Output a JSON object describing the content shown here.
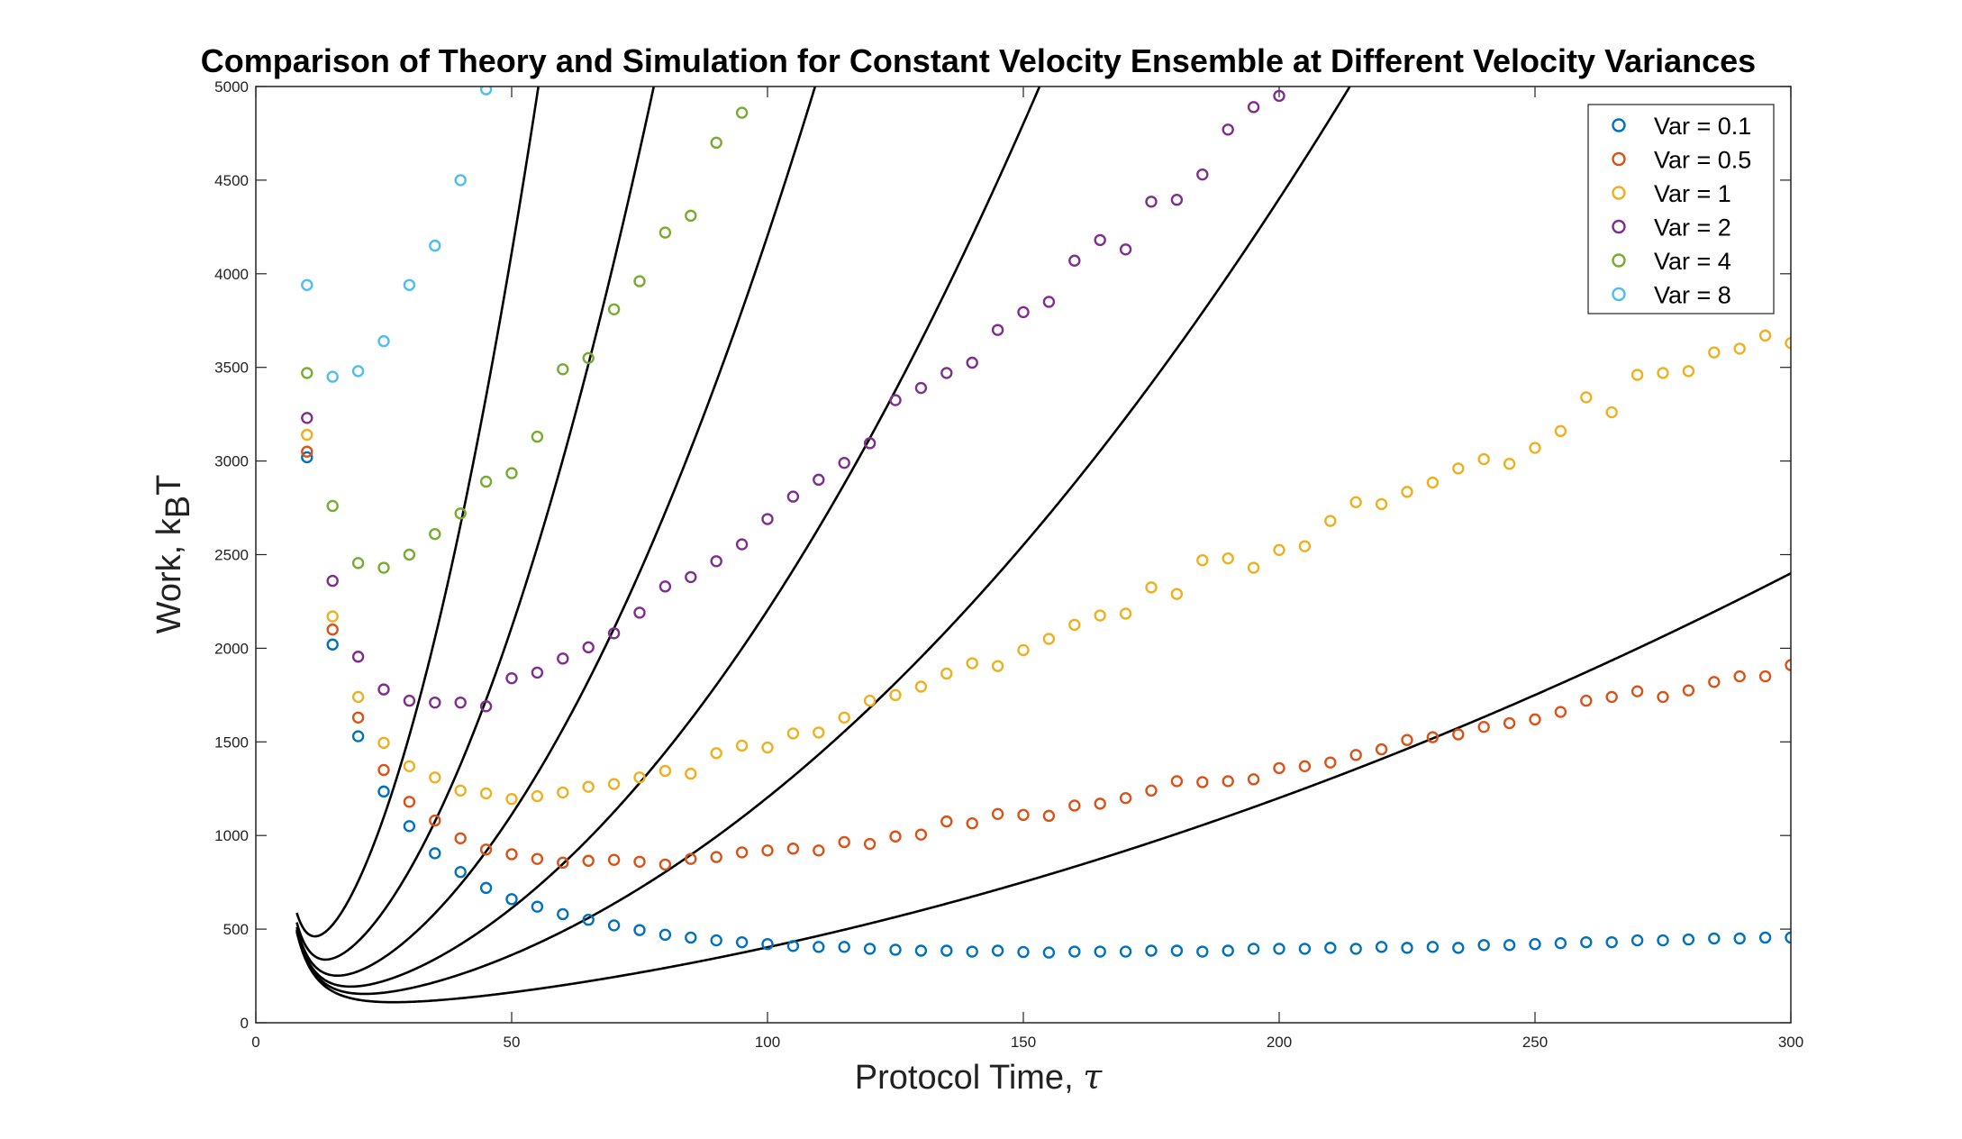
{
  "chart_data": {
    "type": "scatter",
    "title": "Comparison of Theory and Simulation for Constant Velocity Ensemble at Different Velocity Variances",
    "xlabel": "Protocol Time, ",
    "xlabel_symbol": "τ",
    "ylabel": "Work, k",
    "ylabel_sub": "B",
    "ylabel_tail": "T",
    "xlim": [
      0,
      300
    ],
    "ylim": [
      0,
      5000
    ],
    "xticks": [
      0,
      50,
      100,
      150,
      200,
      250,
      300
    ],
    "yticks": [
      0,
      500,
      1000,
      1500,
      2000,
      2500,
      3000,
      3500,
      4000,
      4500,
      5000
    ],
    "grid": false,
    "legend_position": "top-right",
    "series": [
      {
        "name": "Var = 0.1",
        "color": "#0072BD",
        "theory": {
          "a": 30000,
          "b": 0.02,
          "c": 0.0088,
          "d": 2.0
        },
        "x": [
          10,
          15,
          20,
          25,
          30,
          35,
          40,
          45,
          50,
          55,
          60,
          65,
          70,
          75,
          80,
          85,
          90,
          95,
          100,
          105,
          110,
          115,
          120,
          125,
          130,
          135,
          140,
          145,
          150,
          155,
          160,
          165,
          170,
          175,
          180,
          185,
          190,
          195,
          200,
          205,
          210,
          215,
          220,
          225,
          230,
          235,
          240,
          245,
          250,
          255,
          260,
          265,
          270,
          275,
          280,
          285,
          290,
          295,
          300
        ],
        "values": [
          3020,
          2020,
          1530,
          1235,
          1050,
          905,
          805,
          720,
          660,
          620,
          580,
          550,
          520,
          495,
          470,
          455,
          440,
          430,
          420,
          410,
          405,
          405,
          395,
          390,
          385,
          385,
          380,
          385,
          378,
          375,
          380,
          380,
          380,
          385,
          385,
          380,
          385,
          395,
          395,
          395,
          400,
          395,
          405,
          400,
          405,
          400,
          415,
          415,
          420,
          425,
          430,
          430,
          440,
          440,
          445,
          450,
          450,
          455,
          455
        ]
      },
      {
        "name": "Var = 0.5",
        "color": "#D95319",
        "theory": {
          "a": 30000,
          "b": 0.1,
          "c": 0.0088,
          "d": 2.0
        },
        "x": [
          10,
          15,
          20,
          25,
          30,
          35,
          40,
          45,
          50,
          55,
          60,
          65,
          70,
          75,
          80,
          85,
          90,
          95,
          100,
          105,
          110,
          115,
          120,
          125,
          130,
          135,
          140,
          145,
          150,
          155,
          160,
          165,
          170,
          175,
          180,
          185,
          190,
          195,
          200,
          205,
          210,
          215,
          220,
          225,
          230,
          235,
          240,
          245,
          250,
          255,
          260,
          265,
          270,
          275,
          280,
          285,
          290,
          295,
          300
        ],
        "values": [
          3050,
          2100,
          1630,
          1350,
          1180,
          1080,
          985,
          925,
          900,
          875,
          855,
          865,
          870,
          860,
          845,
          875,
          885,
          910,
          920,
          930,
          920,
          965,
          955,
          995,
          1005,
          1075,
          1065,
          1115,
          1110,
          1105,
          1160,
          1170,
          1200,
          1240,
          1290,
          1285,
          1290,
          1300,
          1360,
          1370,
          1390,
          1430,
          1460,
          1510,
          1525,
          1540,
          1580,
          1600,
          1620,
          1660,
          1720,
          1740,
          1770,
          1740,
          1775,
          1820,
          1850,
          1850,
          1910
        ]
      },
      {
        "name": "Var = 1",
        "color": "#EDB120",
        "theory": {
          "a": 30000,
          "b": 0.2,
          "c": 0.0088,
          "d": 2.0
        },
        "x": [
          10,
          15,
          20,
          25,
          30,
          35,
          40,
          45,
          50,
          55,
          60,
          65,
          70,
          75,
          80,
          85,
          90,
          95,
          100,
          105,
          110,
          115,
          120,
          125,
          130,
          135,
          140,
          145,
          150,
          155,
          160,
          165,
          170,
          175,
          180,
          185,
          190,
          195,
          200,
          205,
          210,
          215,
          220,
          225,
          230,
          235,
          240,
          245,
          250,
          255,
          260,
          265,
          270,
          275,
          280,
          285,
          290,
          295,
          300
        ],
        "values": [
          3140,
          2170,
          1740,
          1495,
          1370,
          1310,
          1240,
          1225,
          1195,
          1210,
          1230,
          1260,
          1275,
          1310,
          1345,
          1330,
          1440,
          1480,
          1470,
          1545,
          1550,
          1630,
          1720,
          1750,
          1795,
          1865,
          1920,
          1905,
          1990,
          2050,
          2125,
          2175,
          2185,
          2325,
          2290,
          2470,
          2480,
          2430,
          2525,
          2545,
          2680,
          2780,
          2770,
          2835,
          2885,
          2960,
          3010,
          2985,
          3070,
          3160,
          3340,
          3260,
          3460,
          3470,
          3480,
          3580,
          3600,
          3670,
          3630
        ]
      },
      {
        "name": "Var = 2",
        "color": "#7E2F8E",
        "theory": {
          "a": 30000,
          "b": 0.4,
          "c": 0.0088,
          "d": 2.0
        },
        "x": [
          10,
          15,
          20,
          25,
          30,
          35,
          40,
          45,
          50,
          55,
          60,
          65,
          70,
          75,
          80,
          85,
          90,
          95,
          100,
          105,
          110,
          115,
          120,
          125,
          130,
          135,
          140,
          145,
          150,
          155,
          160,
          165,
          170,
          175,
          180,
          185,
          190,
          195,
          200
        ],
        "values": [
          3230,
          2360,
          1955,
          1780,
          1720,
          1710,
          1710,
          1690,
          1840,
          1870,
          1945,
          2005,
          2080,
          2190,
          2330,
          2380,
          2465,
          2555,
          2690,
          2810,
          2900,
          2990,
          3095,
          3325,
          3390,
          3470,
          3525,
          3700,
          3795,
          3850,
          4070,
          4180,
          4130,
          4385,
          4395,
          4530,
          4770,
          4890,
          4950
        ]
      },
      {
        "name": "Var = 4",
        "color": "#77AC30",
        "theory": {
          "a": 30000,
          "b": 0.8,
          "c": 0.0088,
          "d": 2.0
        },
        "x": [
          10,
          15,
          20,
          25,
          30,
          35,
          40,
          45,
          50,
          55,
          60,
          65,
          70,
          75,
          80,
          85,
          90,
          95
        ],
        "values": [
          3470,
          2760,
          2455,
          2430,
          2500,
          2610,
          2720,
          2890,
          2935,
          3130,
          3490,
          3550,
          3810,
          3960,
          4220,
          4310,
          4700,
          4860
        ]
      },
      {
        "name": "Var = 8",
        "color": "#4DBEEE",
        "theory": {
          "a": 30000,
          "b": 1.6,
          "c": 0.0088,
          "d": 2.0
        },
        "x": [
          10,
          15,
          20,
          25,
          30,
          35,
          40,
          45
        ],
        "values": [
          3940,
          3450,
          3480,
          3640,
          3940,
          4150,
          4500,
          4985
        ]
      }
    ]
  }
}
